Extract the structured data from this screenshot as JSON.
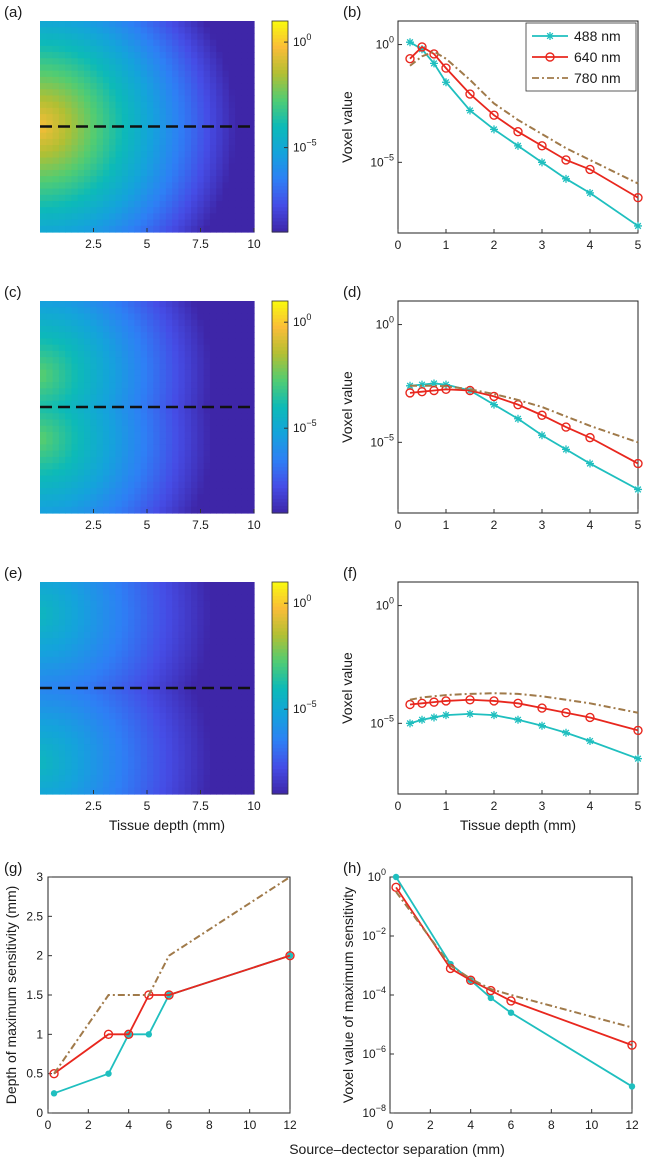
{
  "figure": {
    "panel_labels": [
      "(a)",
      "(b)",
      "(c)",
      "(d)",
      "(e)",
      "(f)",
      "(g)",
      "(h)"
    ],
    "shared_xlabel_bottom": "Source–dectector separation (mm)"
  },
  "colors": {
    "c488": "#1fbfbf",
    "c640": "#e8271e",
    "c780": "#a07a4a",
    "axis": "#222222",
    "dash": "#111111"
  },
  "chart_data": [
    {
      "id": "a",
      "type": "heatmap",
      "title": "(a)",
      "x_ticks": [
        "2.5",
        "5",
        "7.5",
        "10"
      ],
      "x_tick_values": [
        2.5,
        5,
        7.5,
        10
      ],
      "xlim": [
        0,
        10
      ],
      "colorbar": {
        "ticks": [
          "10^0",
          "10^-5"
        ],
        "tick_exponents": [
          0,
          -5
        ],
        "range_log10": [
          -9,
          1
        ]
      },
      "peak_log10": -0.3,
      "source_y_fraction": [
        0.5
      ],
      "decay_per_mm": 0.95,
      "xlabel": ""
    },
    {
      "id": "b",
      "type": "line",
      "title": "(b)",
      "xlabel": "",
      "ylabel": "Voxel value",
      "yscale": "log",
      "xlim": [
        0,
        5
      ],
      "ylim_log10": [
        -8,
        1
      ],
      "x_ticks": [
        "0",
        "1",
        "2",
        "3",
        "4",
        "5"
      ],
      "y_ticks": [
        "10^0",
        "10^-5"
      ],
      "y_tick_exponents": [
        0,
        -5
      ],
      "legend": [
        "488 nm",
        "640 nm",
        "780 nm"
      ],
      "series": [
        {
          "name": "488 nm",
          "marker": "star",
          "x": [
            0.25,
            0.5,
            0.75,
            1,
            1.5,
            2,
            2.5,
            3,
            3.5,
            4,
            5
          ],
          "y_log10": [
            0.1,
            -0.2,
            -0.8,
            -1.6,
            -2.8,
            -3.6,
            -4.3,
            -5.0,
            -5.7,
            -6.3,
            -7.7
          ]
        },
        {
          "name": "640 nm",
          "marker": "circle",
          "x": [
            0.25,
            0.5,
            0.75,
            1,
            1.5,
            2,
            2.5,
            3,
            3.5,
            4,
            5
          ],
          "y_log10": [
            -0.6,
            -0.1,
            -0.4,
            -1.0,
            -2.1,
            -3.0,
            -3.7,
            -4.3,
            -4.9,
            -5.3,
            -6.5
          ]
        },
        {
          "name": "780 nm",
          "marker": "none",
          "dash": true,
          "x": [
            0.25,
            0.5,
            0.75,
            1,
            1.5,
            2,
            2.5,
            3,
            3.5,
            4,
            5
          ],
          "y_log10": [
            -0.9,
            -0.5,
            -0.3,
            -0.6,
            -1.5,
            -2.5,
            -3.2,
            -3.8,
            -4.4,
            -4.9,
            -5.9
          ]
        }
      ]
    },
    {
      "id": "c",
      "type": "heatmap",
      "title": "(c)",
      "x_ticks": [
        "2.5",
        "5",
        "7.5",
        "10"
      ],
      "x_tick_values": [
        2.5,
        5,
        7.5,
        10
      ],
      "xlim": [
        0,
        10
      ],
      "colorbar": {
        "ticks": [
          "10^0",
          "10^-5"
        ],
        "tick_exponents": [
          0,
          -5
        ],
        "range_log10": [
          -9,
          1
        ]
      },
      "peak_log10": -2.6,
      "source_y_fraction": [
        0.35,
        0.65
      ],
      "decay_per_mm": 0.8,
      "xlabel": ""
    },
    {
      "id": "d",
      "type": "line",
      "title": "(d)",
      "xlabel": "",
      "ylabel": "Voxel value",
      "yscale": "log",
      "xlim": [
        0,
        5
      ],
      "ylim_log10": [
        -8,
        1
      ],
      "x_ticks": [
        "0",
        "1",
        "2",
        "3",
        "4",
        "5"
      ],
      "y_ticks": [
        "10^0",
        "10^-5"
      ],
      "y_tick_exponents": [
        0,
        -5
      ],
      "legend": [],
      "series": [
        {
          "name": "488 nm",
          "marker": "star",
          "x": [
            0.25,
            0.5,
            0.75,
            1,
            1.5,
            2,
            2.5,
            3,
            3.5,
            4,
            5
          ],
          "y_log10": [
            -2.6,
            -2.55,
            -2.5,
            -2.55,
            -2.8,
            -3.4,
            -4.0,
            -4.7,
            -5.3,
            -5.9,
            -7.0
          ]
        },
        {
          "name": "640 nm",
          "marker": "circle",
          "x": [
            0.25,
            0.5,
            0.75,
            1,
            1.5,
            2,
            2.5,
            3,
            3.5,
            4,
            5
          ],
          "y_log10": [
            -2.9,
            -2.85,
            -2.8,
            -2.75,
            -2.8,
            -3.05,
            -3.4,
            -3.85,
            -4.35,
            -4.8,
            -5.9
          ]
        },
        {
          "name": "780 nm",
          "marker": "none",
          "dash": true,
          "x": [
            0.25,
            0.5,
            0.75,
            1,
            1.5,
            2,
            2.5,
            3,
            3.5,
            4,
            5
          ],
          "y_log10": [
            -2.6,
            -2.6,
            -2.6,
            -2.62,
            -2.75,
            -2.95,
            -3.2,
            -3.5,
            -3.9,
            -4.3,
            -5.0
          ]
        }
      ]
    },
    {
      "id": "e",
      "type": "heatmap",
      "title": "(e)",
      "x_ticks": [
        "2.5",
        "5",
        "7.5",
        "10"
      ],
      "x_tick_values": [
        2.5,
        5,
        7.5,
        10
      ],
      "xlim": [
        0,
        10
      ],
      "colorbar": {
        "ticks": [
          "10^0",
          "10^-5"
        ],
        "tick_exponents": [
          0,
          -5
        ],
        "range_log10": [
          -9,
          1
        ]
      },
      "peak_log10": -4.2,
      "source_y_fraction": [
        0.15,
        0.85
      ],
      "decay_per_mm": 0.6,
      "xlabel": "Tissue depth (mm)"
    },
    {
      "id": "f",
      "type": "line",
      "title": "(f)",
      "xlabel": "Tissue depth (mm)",
      "ylabel": "Voxel value",
      "yscale": "log",
      "xlim": [
        0,
        5
      ],
      "ylim_log10": [
        -8,
        1
      ],
      "x_ticks": [
        "0",
        "1",
        "2",
        "3",
        "4",
        "5"
      ],
      "y_ticks": [
        "10^0",
        "10^-5"
      ],
      "y_tick_exponents": [
        0,
        -5
      ],
      "legend": [],
      "series": [
        {
          "name": "488 nm",
          "marker": "star",
          "x": [
            0.25,
            0.5,
            0.75,
            1,
            1.5,
            2,
            2.5,
            3,
            3.5,
            4,
            5
          ],
          "y_log10": [
            -5.0,
            -4.85,
            -4.75,
            -4.65,
            -4.6,
            -4.65,
            -4.85,
            -5.1,
            -5.4,
            -5.75,
            -6.5
          ]
        },
        {
          "name": "640 nm",
          "marker": "circle",
          "x": [
            0.25,
            0.5,
            0.75,
            1,
            1.5,
            2,
            2.5,
            3,
            3.5,
            4,
            5
          ],
          "y_log10": [
            -4.2,
            -4.15,
            -4.1,
            -4.05,
            -4.0,
            -4.05,
            -4.15,
            -4.35,
            -4.55,
            -4.75,
            -5.3
          ]
        },
        {
          "name": "780 nm",
          "marker": "none",
          "dash": true,
          "x": [
            0.25,
            0.5,
            0.75,
            1,
            1.5,
            2,
            2.5,
            3,
            3.5,
            4,
            5
          ],
          "y_log10": [
            -4.0,
            -3.9,
            -3.85,
            -3.8,
            -3.75,
            -3.72,
            -3.75,
            -3.85,
            -4.0,
            -4.15,
            -4.55
          ]
        }
      ]
    },
    {
      "id": "g",
      "type": "line",
      "title": "(g)",
      "xlabel": "",
      "ylabel": "Depth of maximum sensitivity (mm)",
      "yscale": "linear",
      "xlim": [
        0,
        12
      ],
      "ylim": [
        0,
        3
      ],
      "x_ticks": [
        "0",
        "2",
        "4",
        "6",
        "8",
        "10",
        "12"
      ],
      "x_tick_values": [
        0,
        2,
        4,
        6,
        8,
        10,
        12
      ],
      "y_ticks": [
        "0",
        "0.5",
        "1",
        "1.5",
        "2",
        "2.5",
        "3"
      ],
      "y_tick_values": [
        0,
        0.5,
        1,
        1.5,
        2,
        2.5,
        3
      ],
      "legend": [],
      "series": [
        {
          "name": "488 nm",
          "marker": "dot",
          "x": [
            0.3,
            3,
            4,
            5,
            6,
            12
          ],
          "y": [
            0.25,
            0.5,
            1,
            1,
            1.5,
            2
          ]
        },
        {
          "name": "640 nm",
          "marker": "circle",
          "x": [
            0.3,
            3,
            4,
            5,
            6,
            12
          ],
          "y": [
            0.5,
            1,
            1,
            1.5,
            1.5,
            2
          ]
        },
        {
          "name": "780 nm",
          "marker": "none",
          "dash": true,
          "x": [
            0.3,
            3,
            4,
            5,
            6,
            12
          ],
          "y": [
            0.5,
            1.5,
            1.5,
            1.5,
            2,
            3
          ]
        }
      ]
    },
    {
      "id": "h",
      "type": "line",
      "title": "(h)",
      "xlabel": "",
      "ylabel": "Voxel value of maximum sensitivity",
      "yscale": "log",
      "xlim": [
        0,
        12
      ],
      "ylim_log10": [
        -8,
        0
      ],
      "x_ticks": [
        "0",
        "2",
        "4",
        "6",
        "8",
        "10",
        "12"
      ],
      "x_tick_values": [
        0,
        2,
        4,
        6,
        8,
        10,
        12
      ],
      "y_ticks": [
        "10^0",
        "10^-2",
        "10^-4",
        "10^-6",
        "10^-8"
      ],
      "y_tick_exponents": [
        0,
        -2,
        -4,
        -6,
        -8
      ],
      "legend": [],
      "series": [
        {
          "name": "488 nm",
          "marker": "dot",
          "x": [
            0.3,
            3,
            4,
            5,
            6,
            12
          ],
          "y_log10": [
            0,
            -2.95,
            -3.5,
            -4.1,
            -4.6,
            -7.1
          ]
        },
        {
          "name": "640 nm",
          "marker": "circle",
          "x": [
            0.3,
            3,
            4,
            5,
            6,
            12
          ],
          "y_log10": [
            -0.35,
            -3.1,
            -3.5,
            -3.85,
            -4.2,
            -5.7
          ]
        },
        {
          "name": "780 nm",
          "marker": "none",
          "dash": true,
          "x": [
            0.3,
            3,
            4,
            5,
            6,
            12
          ],
          "y_log10": [
            -0.5,
            -3.0,
            -3.45,
            -3.8,
            -4.0,
            -5.1
          ]
        }
      ]
    }
  ]
}
